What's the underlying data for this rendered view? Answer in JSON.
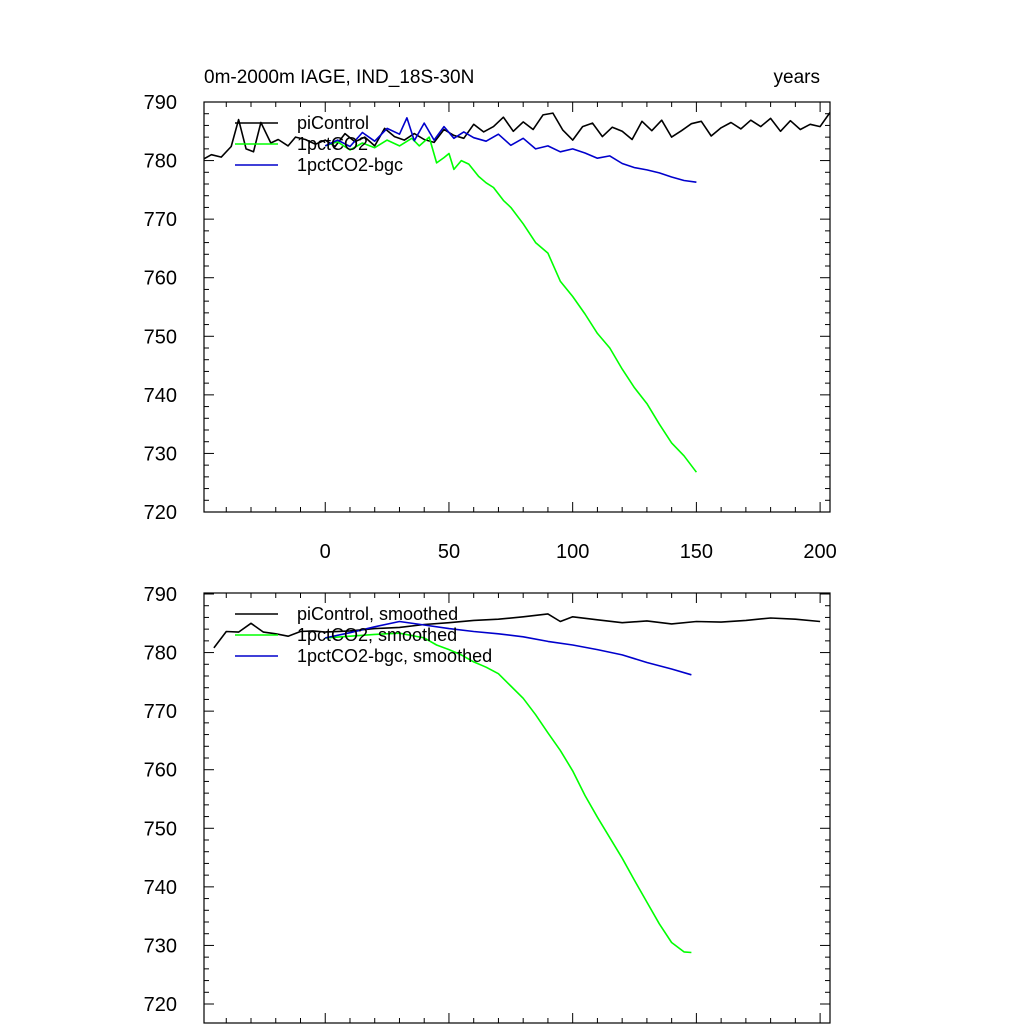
{
  "chart_data": [
    {
      "type": "line",
      "title": "0m-2000m IAGE, IND_18S-30N",
      "title_right": "years",
      "xlim": [
        -49,
        204
      ],
      "ylim": [
        720,
        790
      ],
      "xticks": [
        0,
        50,
        100,
        150,
        200
      ],
      "xtick_labels": [
        "0",
        "50",
        "100",
        "150",
        "200"
      ],
      "yticks": [
        720,
        730,
        740,
        750,
        760,
        770,
        780,
        790
      ],
      "ytick_labels": [
        "720",
        "730",
        "740",
        "750",
        "760",
        "770",
        "780",
        "790"
      ],
      "legend_position": "top-left",
      "series": [
        {
          "name": "piControl",
          "color": "#000000",
          "x": [
            -49,
            -46,
            -42,
            -38,
            -35,
            -32,
            -29,
            -26,
            -22,
            -19,
            -15,
            -12,
            -8,
            -4,
            0,
            4,
            8,
            12,
            16,
            20,
            24,
            28,
            32,
            36,
            40,
            44,
            48,
            52,
            56,
            60,
            64,
            68,
            72,
            76,
            80,
            84,
            88,
            92,
            96,
            100,
            104,
            108,
            112,
            116,
            120,
            124,
            128,
            132,
            136,
            140,
            144,
            148,
            152,
            156,
            160,
            164,
            168,
            172,
            176,
            180,
            184,
            188,
            192,
            196,
            200,
            204
          ],
          "y": [
            780.3,
            781,
            780.6,
            782.4,
            787,
            782,
            781.5,
            786.5,
            783,
            783.6,
            782.5,
            784,
            783.6,
            782.8,
            783.5,
            782.4,
            784.6,
            783.2,
            784,
            782.5,
            785.5,
            784.1,
            783.5,
            784.6,
            783.6,
            783.1,
            785.3,
            784.3,
            783.8,
            786.2,
            784.9,
            785.8,
            787.4,
            785,
            786.6,
            785.3,
            787.8,
            788.1,
            785.2,
            783.5,
            785.8,
            786.4,
            784.1,
            785.7,
            785,
            783.6,
            786.7,
            785.1,
            786.9,
            784,
            785.1,
            786.3,
            786.7,
            784.2,
            785.6,
            786.5,
            785.4,
            786.9,
            785.8,
            787.2,
            785,
            786.8,
            785.3,
            786.2,
            785.8,
            788.2
          ]
        },
        {
          "name": "1pctCO2",
          "color": "#00ff00",
          "x": [
            0,
            5,
            10,
            15,
            20,
            25,
            30,
            35,
            38,
            42,
            45,
            48,
            50,
            52,
            55,
            58,
            62,
            65,
            68,
            72,
            75,
            80,
            85,
            90,
            95,
            100,
            105,
            110,
            115,
            120,
            125,
            130,
            135,
            140,
            145,
            150
          ],
          "y": [
            782.5,
            783.2,
            781.8,
            783,
            782.2,
            783.5,
            782.5,
            783.8,
            782.5,
            784,
            779.6,
            780.5,
            781.2,
            778.5,
            780,
            779.4,
            777.3,
            776.2,
            775.4,
            773.2,
            772,
            769.2,
            766,
            764.2,
            759.4,
            756.8,
            753.8,
            750.5,
            748,
            744.4,
            741.2,
            738.5,
            735,
            731.8,
            729.6,
            726.8
          ]
        },
        {
          "name": "1pctCO2-bgc",
          "color": "#0000cc",
          "x": [
            0,
            5,
            10,
            15,
            20,
            25,
            30,
            33,
            36,
            40,
            44,
            48,
            52,
            56,
            60,
            65,
            70,
            75,
            80,
            85,
            90,
            95,
            100,
            105,
            110,
            115,
            120,
            125,
            130,
            135,
            140,
            145,
            150
          ],
          "y": [
            782.5,
            783.5,
            782.4,
            784.8,
            783.3,
            785.5,
            784.5,
            787.3,
            783.4,
            786.4,
            783.5,
            785.8,
            783.8,
            784.9,
            783.9,
            783.3,
            784.5,
            782.6,
            783.8,
            782,
            782.5,
            781.5,
            782,
            781.3,
            780.4,
            780.8,
            779.5,
            778.8,
            778.4,
            777.9,
            777.2,
            776.6,
            776.3
          ]
        }
      ]
    },
    {
      "type": "line",
      "title": "",
      "xlim": [
        -49,
        204
      ],
      "ylim": [
        720,
        790
      ],
      "xticks": [
        0,
        50,
        100,
        150,
        200
      ],
      "yticks": [
        720,
        730,
        740,
        750,
        760,
        770,
        780,
        790
      ],
      "ytick_labels": [
        "720",
        "730",
        "740",
        "750",
        "760",
        "770",
        "780",
        "790"
      ],
      "legend_position": "top-left",
      "series": [
        {
          "name": "piControl, smoothed",
          "color": "#000000",
          "x": [
            -45,
            -40,
            -35,
            -30,
            -25,
            -20,
            -15,
            -10,
            -5,
            0,
            10,
            20,
            30,
            40,
            50,
            60,
            70,
            80,
            90,
            95,
            100,
            110,
            120,
            130,
            140,
            150,
            160,
            170,
            180,
            190,
            200
          ],
          "y": [
            780.8,
            783.6,
            783.5,
            785,
            783.5,
            783.2,
            782.8,
            783.6,
            783.7,
            783.5,
            783.7,
            784.1,
            784.3,
            784.8,
            785.1,
            785.5,
            785.7,
            786.1,
            786.6,
            785.3,
            786.1,
            785.6,
            785.1,
            785.4,
            784.9,
            785.3,
            785.2,
            785.5,
            785.9,
            785.7,
            785.3
          ]
        },
        {
          "name": "1pctCO2, smoothed",
          "color": "#00ff00",
          "x": [
            0,
            10,
            20,
            30,
            40,
            45,
            50,
            55,
            60,
            65,
            70,
            75,
            80,
            85,
            90,
            95,
            100,
            105,
            110,
            115,
            120,
            125,
            130,
            135,
            140,
            145,
            148
          ],
          "y": [
            782.5,
            782.8,
            783.1,
            783.3,
            782.5,
            781.3,
            780.5,
            779.6,
            778.4,
            777.5,
            776.4,
            774.3,
            772.2,
            769.4,
            766.3,
            763.3,
            759.8,
            755.6,
            751.9,
            748.4,
            744.9,
            741.1,
            737.4,
            733.7,
            730.5,
            728.9,
            728.8
          ]
        },
        {
          "name": "1pctCO2-bgc, smoothed",
          "color": "#0000cc",
          "x": [
            0,
            10,
            20,
            30,
            40,
            50,
            60,
            70,
            80,
            90,
            100,
            110,
            120,
            130,
            140,
            148
          ],
          "y": [
            782.5,
            783.4,
            784.4,
            785.3,
            784.7,
            784.1,
            783.6,
            783.2,
            782.7,
            781.9,
            781.3,
            780.5,
            779.6,
            778.3,
            777.2,
            776.2
          ]
        }
      ]
    }
  ]
}
